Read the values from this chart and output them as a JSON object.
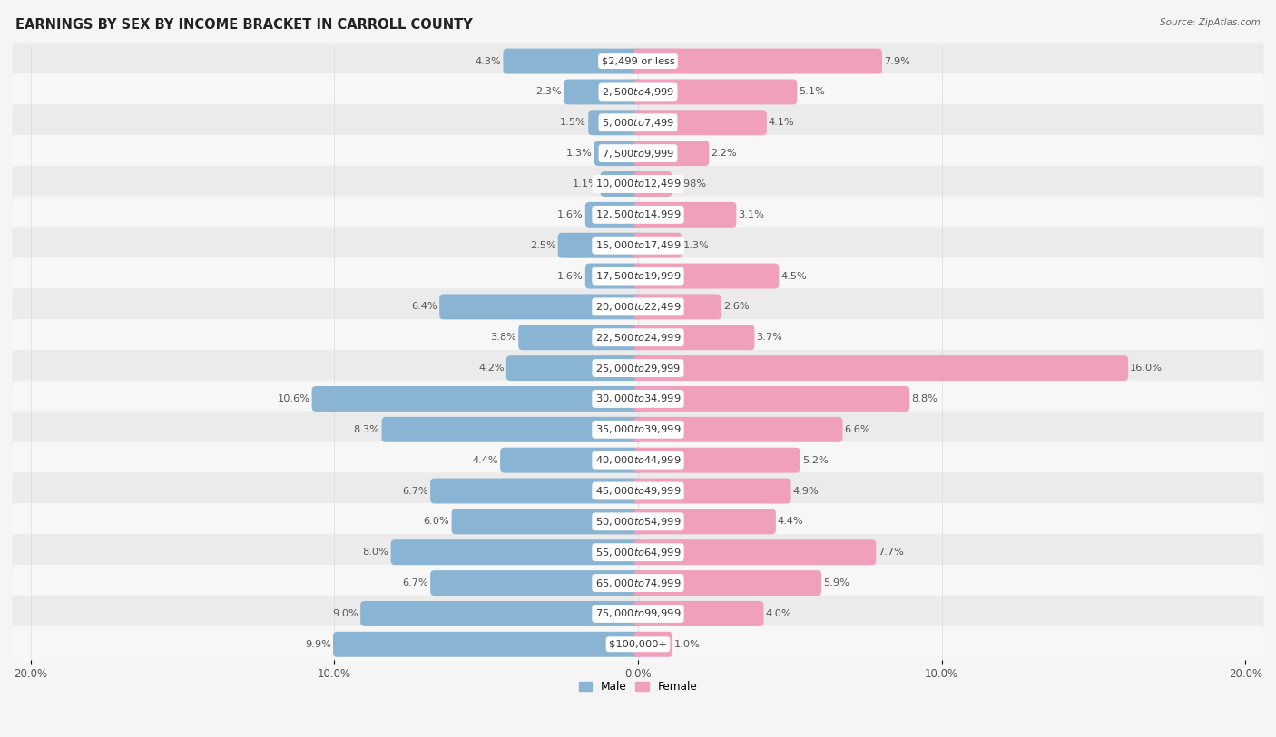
{
  "title": "EARNINGS BY SEX BY INCOME BRACKET IN CARROLL COUNTY",
  "source": "Source: ZipAtlas.com",
  "categories": [
    "$2,499 or less",
    "$2,500 to $4,999",
    "$5,000 to $7,499",
    "$7,500 to $9,999",
    "$10,000 to $12,499",
    "$12,500 to $14,999",
    "$15,000 to $17,499",
    "$17,500 to $19,999",
    "$20,000 to $22,499",
    "$22,500 to $24,999",
    "$25,000 to $29,999",
    "$30,000 to $34,999",
    "$35,000 to $39,999",
    "$40,000 to $44,999",
    "$45,000 to $49,999",
    "$50,000 to $54,999",
    "$55,000 to $64,999",
    "$65,000 to $74,999",
    "$75,000 to $99,999",
    "$100,000+"
  ],
  "male_values": [
    4.3,
    2.3,
    1.5,
    1.3,
    1.1,
    1.6,
    2.5,
    1.6,
    6.4,
    3.8,
    4.2,
    10.6,
    8.3,
    4.4,
    6.7,
    6.0,
    8.0,
    6.7,
    9.0,
    9.9
  ],
  "female_values": [
    7.9,
    5.1,
    4.1,
    2.2,
    0.98,
    3.1,
    1.3,
    4.5,
    2.6,
    3.7,
    16.0,
    8.8,
    6.6,
    5.2,
    4.9,
    4.4,
    7.7,
    5.9,
    4.0,
    1.0
  ],
  "male_color": "#8ab4d4",
  "female_color": "#f0a0b8",
  "male_label": "Male",
  "female_label": "Female",
  "xlim": 20.0,
  "row_colors": [
    "#ebebeb",
    "#f7f7f7"
  ],
  "title_fontsize": 10.5,
  "label_fontsize": 8.2,
  "axis_fontsize": 8.5,
  "value_fontsize": 8.2
}
